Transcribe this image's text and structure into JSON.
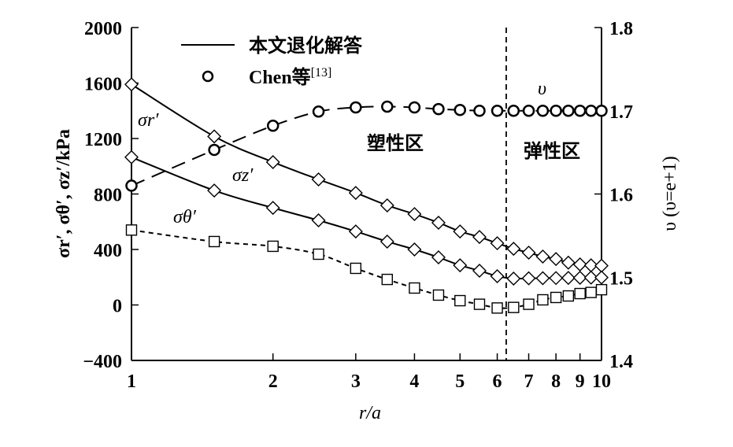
{
  "chart_data": {
    "type": "line",
    "xlabel": "r/a",
    "ylabel_left": "σr′, σθ′, σz′/kPa",
    "ylabel_right": "υ (υ=e+1)",
    "x_scale": "log",
    "xlim": [
      1,
      10
    ],
    "ylim_left": [
      -400,
      2000
    ],
    "ylim_right": [
      1.4,
      1.8
    ],
    "x_ticks": [
      1,
      2,
      3,
      4,
      5,
      6,
      7,
      8,
      9,
      10
    ],
    "y_ticks_left": [
      -400,
      0,
      400,
      800,
      1200,
      1600,
      2000
    ],
    "y_ticks_right": [
      "1.4",
      "1.5",
      "1.6",
      "1.7",
      "1.8"
    ],
    "grid": false,
    "legend_position": "top-left",
    "legend": [
      {
        "label": "本文退化解答",
        "style": "solid line"
      },
      {
        "label": "Chen等",
        "ref": "[13]",
        "style": "circle marker"
      }
    ],
    "annotations": {
      "plastic_zone": "塑性区",
      "elastic_zone": "弹性区",
      "boundary_r_a": 6.27,
      "label_sr": "σr′",
      "label_sz": "σz′",
      "label_st": "σθ′",
      "label_v": "υ"
    },
    "x": [
      1,
      1.5,
      2,
      2.5,
      3,
      3.5,
      4,
      4.5,
      5,
      5.5,
      6,
      6.5,
      7,
      7.5,
      8,
      8.5,
      9,
      9.5,
      10
    ],
    "series": [
      {
        "key": "sigma_r",
        "axis": "left",
        "marker": "diamond",
        "line": "solid",
        "values": [
          1590,
          1215,
          1030,
          905,
          808,
          718,
          655,
          593,
          530,
          490,
          445,
          405,
          377,
          349,
          331,
          305,
          292,
          286,
          283
        ]
      },
      {
        "key": "sigma_z",
        "axis": "left",
        "marker": "diamond",
        "line": "solid",
        "values": [
          1065,
          825,
          700,
          610,
          530,
          457,
          400,
          343,
          286,
          247,
          207,
          190,
          192,
          193,
          194,
          195,
          196,
          197,
          198
        ]
      },
      {
        "key": "sigma_theta",
        "axis": "left",
        "marker": "square",
        "line": "short-dash",
        "values": [
          540,
          457,
          423,
          366,
          264,
          184,
          122,
          71,
          31,
          5,
          -22,
          -18,
          5,
          37,
          54,
          65,
          82,
          90,
          110
        ]
      },
      {
        "key": "upsilon",
        "axis": "right",
        "marker": "circle",
        "line": "long-dash",
        "values": [
          1.61,
          1.653,
          1.682,
          1.699,
          1.704,
          1.705,
          1.704,
          1.702,
          1.701,
          1.7,
          1.7,
          1.7,
          1.7,
          1.7,
          1.7,
          1.7,
          1.7,
          1.7,
          1.7
        ]
      }
    ]
  }
}
